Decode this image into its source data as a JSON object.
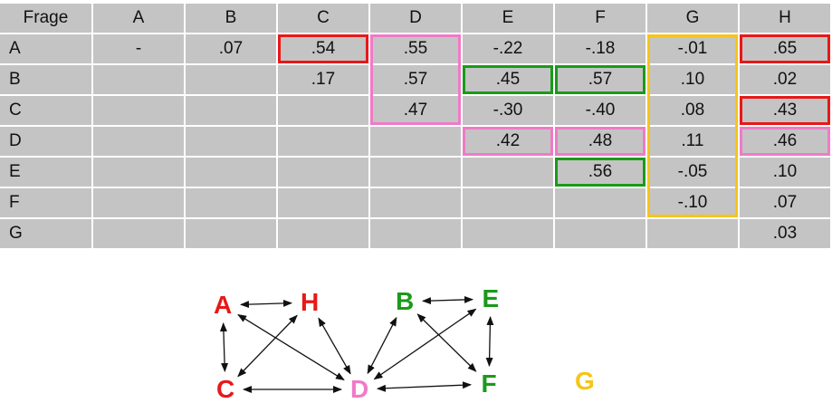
{
  "table": {
    "corner": "Frage",
    "columns": [
      "A",
      "B",
      "C",
      "D",
      "E",
      "F",
      "G",
      "H"
    ],
    "rows": [
      {
        "label": "A",
        "values": [
          "-",
          ".07",
          ".54",
          ".55",
          "-.22",
          "-.18",
          "-.01",
          ".65"
        ]
      },
      {
        "label": "B",
        "values": [
          "",
          "",
          ".17",
          ".57",
          ".45",
          ".57",
          ".10",
          ".02"
        ]
      },
      {
        "label": "C",
        "values": [
          "",
          "",
          "",
          ".47",
          "-.30",
          "-.40",
          ".08",
          ".43"
        ]
      },
      {
        "label": "D",
        "values": [
          "",
          "",
          "",
          "",
          ".42",
          ".48",
          ".11",
          ".46"
        ]
      },
      {
        "label": "E",
        "values": [
          "",
          "",
          "",
          "",
          "",
          ".56",
          "-.05",
          ".10"
        ]
      },
      {
        "label": "F",
        "values": [
          "",
          "",
          "",
          "",
          "",
          "",
          "-.10",
          ".07"
        ]
      },
      {
        "label": "G",
        "values": [
          "",
          "",
          "",
          "",
          "",
          "",
          "",
          ".03"
        ]
      }
    ]
  },
  "highlight_colors": {
    "red": "#e81818",
    "pink": "#f07ac8",
    "green": "#1a9a1a",
    "yellow": "#f5c518"
  },
  "graph": {
    "nodes": [
      {
        "id": "A",
        "label": "A",
        "color": "#e81818"
      },
      {
        "id": "H",
        "label": "H",
        "color": "#e81818"
      },
      {
        "id": "C",
        "label": "C",
        "color": "#e81818"
      },
      {
        "id": "D",
        "label": "D",
        "color": "#f07ac8"
      },
      {
        "id": "B",
        "label": "B",
        "color": "#1a9a1a"
      },
      {
        "id": "E",
        "label": "E",
        "color": "#1a9a1a"
      },
      {
        "id": "F",
        "label": "F",
        "color": "#1a9a1a"
      },
      {
        "id": "G",
        "label": "G",
        "color": "#f5c518"
      }
    ],
    "edges": [
      [
        "A",
        "H"
      ],
      [
        "A",
        "C"
      ],
      [
        "A",
        "D"
      ],
      [
        "H",
        "C"
      ],
      [
        "H",
        "D"
      ],
      [
        "C",
        "D"
      ],
      [
        "B",
        "E"
      ],
      [
        "B",
        "F"
      ],
      [
        "B",
        "D"
      ],
      [
        "E",
        "F"
      ],
      [
        "E",
        "D"
      ],
      [
        "D",
        "F"
      ]
    ]
  }
}
